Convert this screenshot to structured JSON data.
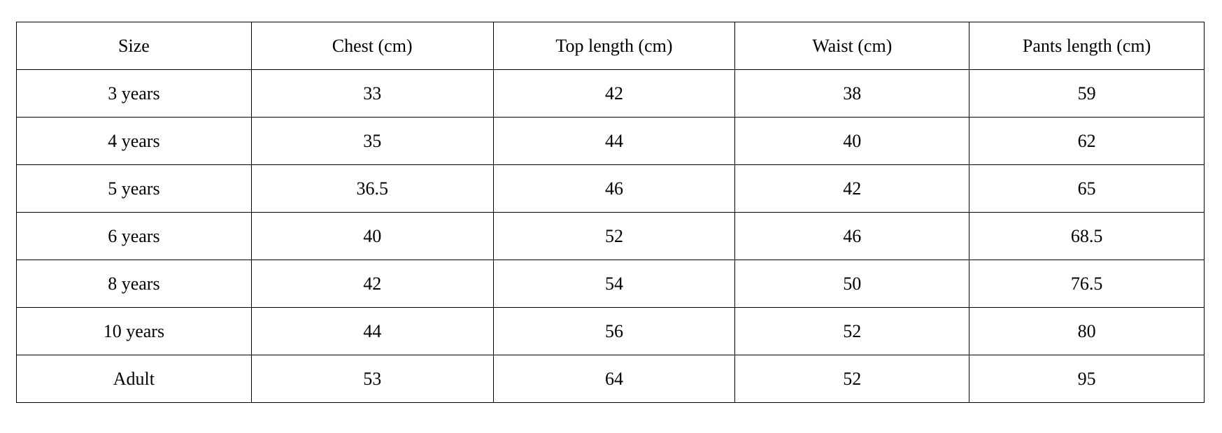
{
  "table": {
    "headers": [
      "Size",
      "Chest (cm)",
      "Top length (cm)",
      "Waist (cm)",
      "Pants length (cm)"
    ],
    "rows": [
      [
        "3 years",
        "33",
        "42",
        "38",
        "59"
      ],
      [
        "4 years",
        "35",
        "44",
        "40",
        "62"
      ],
      [
        "5 years",
        "36.5",
        "46",
        "42",
        "65"
      ],
      [
        "6 years",
        "40",
        "52",
        "46",
        "68.5"
      ],
      [
        "8 years",
        "42",
        "54",
        "50",
        "76.5"
      ],
      [
        "10 years",
        "44",
        "56",
        "52",
        "80"
      ],
      [
        "Adult",
        "53",
        "64",
        "52",
        "95"
      ]
    ]
  }
}
